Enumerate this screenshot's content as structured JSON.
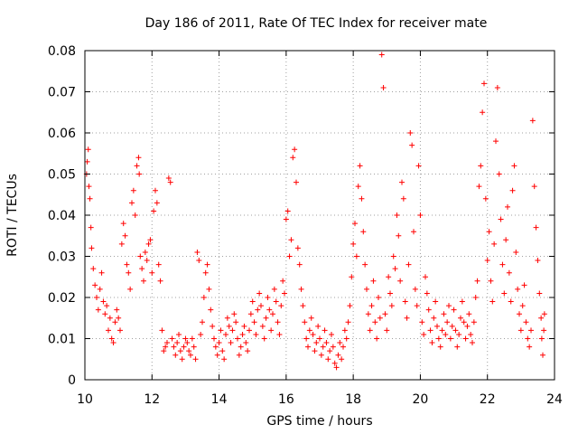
{
  "chart_data": {
    "type": "scatter",
    "title": "Day 186 of 2011, Rate Of TEC Index for receiver mate",
    "xlabel": "GPS time / hours",
    "ylabel": "ROTI / TECUs",
    "xlim": [
      10,
      24
    ],
    "ylim": [
      0,
      0.08
    ],
    "xticks": [
      "10",
      "12",
      "14",
      "16",
      "18",
      "20",
      "22",
      "24"
    ],
    "yticks": [
      "0",
      "0.01",
      "0.02",
      "0.03",
      "0.04",
      "0.05",
      "0.06",
      "0.07",
      "0.08"
    ],
    "grid": true,
    "marker": "+",
    "color": "#ff0000",
    "points": [
      [
        10.05,
        0.05
      ],
      [
        10.07,
        0.053
      ],
      [
        10.1,
        0.056
      ],
      [
        10.12,
        0.047
      ],
      [
        10.15,
        0.044
      ],
      [
        10.18,
        0.037
      ],
      [
        10.2,
        0.032
      ],
      [
        10.25,
        0.027
      ],
      [
        10.3,
        0.023
      ],
      [
        10.35,
        0.02
      ],
      [
        10.4,
        0.017
      ],
      [
        10.45,
        0.022
      ],
      [
        10.5,
        0.026
      ],
      [
        10.55,
        0.019
      ],
      [
        10.6,
        0.016
      ],
      [
        10.65,
        0.018
      ],
      [
        10.7,
        0.012
      ],
      [
        10.75,
        0.015
      ],
      [
        10.8,
        0.01
      ],
      [
        10.85,
        0.009
      ],
      [
        10.9,
        0.014
      ],
      [
        10.95,
        0.017
      ],
      [
        11.0,
        0.015
      ],
      [
        11.05,
        0.012
      ],
      [
        11.1,
        0.033
      ],
      [
        11.15,
        0.038
      ],
      [
        11.2,
        0.035
      ],
      [
        11.25,
        0.028
      ],
      [
        11.3,
        0.026
      ],
      [
        11.35,
        0.022
      ],
      [
        11.4,
        0.043
      ],
      [
        11.45,
        0.046
      ],
      [
        11.5,
        0.04
      ],
      [
        11.55,
        0.052
      ],
      [
        11.6,
        0.054
      ],
      [
        11.62,
        0.05
      ],
      [
        11.65,
        0.03
      ],
      [
        11.7,
        0.027
      ],
      [
        11.75,
        0.024
      ],
      [
        11.8,
        0.031
      ],
      [
        11.85,
        0.029
      ],
      [
        11.9,
        0.033
      ],
      [
        11.95,
        0.034
      ],
      [
        12.0,
        0.026
      ],
      [
        12.05,
        0.041
      ],
      [
        12.1,
        0.046
      ],
      [
        12.15,
        0.043
      ],
      [
        12.2,
        0.028
      ],
      [
        12.25,
        0.024
      ],
      [
        12.3,
        0.012
      ],
      [
        12.35,
        0.007
      ],
      [
        12.4,
        0.008
      ],
      [
        12.45,
        0.009
      ],
      [
        12.5,
        0.049
      ],
      [
        12.55,
        0.048
      ],
      [
        12.6,
        0.01
      ],
      [
        12.65,
        0.008
      ],
      [
        12.7,
        0.006
      ],
      [
        12.75,
        0.009
      ],
      [
        12.8,
        0.011
      ],
      [
        12.85,
        0.007
      ],
      [
        12.9,
        0.005
      ],
      [
        12.95,
        0.008
      ],
      [
        13.0,
        0.01
      ],
      [
        13.05,
        0.009
      ],
      [
        13.1,
        0.007
      ],
      [
        13.15,
        0.006
      ],
      [
        13.2,
        0.01
      ],
      [
        13.25,
        0.008
      ],
      [
        13.3,
        0.005
      ],
      [
        13.35,
        0.031
      ],
      [
        13.4,
        0.029
      ],
      [
        13.45,
        0.011
      ],
      [
        13.5,
        0.014
      ],
      [
        13.55,
        0.02
      ],
      [
        13.6,
        0.026
      ],
      [
        13.65,
        0.028
      ],
      [
        13.7,
        0.022
      ],
      [
        13.75,
        0.017
      ],
      [
        13.8,
        0.013
      ],
      [
        13.85,
        0.01
      ],
      [
        13.9,
        0.008
      ],
      [
        13.95,
        0.006
      ],
      [
        14.0,
        0.009
      ],
      [
        14.05,
        0.012
      ],
      [
        14.1,
        0.007
      ],
      [
        14.15,
        0.005
      ],
      [
        14.2,
        0.011
      ],
      [
        14.25,
        0.015
      ],
      [
        14.3,
        0.013
      ],
      [
        14.35,
        0.009
      ],
      [
        14.4,
        0.012
      ],
      [
        14.45,
        0.016
      ],
      [
        14.5,
        0.014
      ],
      [
        14.55,
        0.01
      ],
      [
        14.6,
        0.006
      ],
      [
        14.65,
        0.008
      ],
      [
        14.7,
        0.011
      ],
      [
        14.75,
        0.013
      ],
      [
        14.8,
        0.009
      ],
      [
        14.85,
        0.007
      ],
      [
        14.9,
        0.012
      ],
      [
        14.95,
        0.016
      ],
      [
        15.0,
        0.019
      ],
      [
        15.05,
        0.014
      ],
      [
        15.1,
        0.011
      ],
      [
        15.15,
        0.017
      ],
      [
        15.2,
        0.021
      ],
      [
        15.25,
        0.018
      ],
      [
        15.3,
        0.013
      ],
      [
        15.35,
        0.01
      ],
      [
        15.4,
        0.015
      ],
      [
        15.45,
        0.02
      ],
      [
        15.5,
        0.017
      ],
      [
        15.55,
        0.012
      ],
      [
        15.6,
        0.016
      ],
      [
        15.65,
        0.022
      ],
      [
        15.7,
        0.019
      ],
      [
        15.75,
        0.014
      ],
      [
        15.8,
        0.011
      ],
      [
        15.85,
        0.018
      ],
      [
        15.9,
        0.024
      ],
      [
        15.95,
        0.021
      ],
      [
        16.0,
        0.039
      ],
      [
        16.05,
        0.041
      ],
      [
        16.1,
        0.03
      ],
      [
        16.15,
        0.034
      ],
      [
        16.2,
        0.054
      ],
      [
        16.25,
        0.056
      ],
      [
        16.3,
        0.048
      ],
      [
        16.35,
        0.032
      ],
      [
        16.4,
        0.028
      ],
      [
        16.45,
        0.022
      ],
      [
        16.5,
        0.018
      ],
      [
        16.55,
        0.014
      ],
      [
        16.6,
        0.01
      ],
      [
        16.65,
        0.008
      ],
      [
        16.7,
        0.012
      ],
      [
        16.75,
        0.015
      ],
      [
        16.8,
        0.011
      ],
      [
        16.85,
        0.007
      ],
      [
        16.9,
        0.009
      ],
      [
        16.95,
        0.013
      ],
      [
        17.0,
        0.01
      ],
      [
        17.05,
        0.006
      ],
      [
        17.1,
        0.008
      ],
      [
        17.15,
        0.012
      ],
      [
        17.2,
        0.009
      ],
      [
        17.25,
        0.005
      ],
      [
        17.3,
        0.007
      ],
      [
        17.35,
        0.011
      ],
      [
        17.4,
        0.008
      ],
      [
        17.45,
        0.004
      ],
      [
        17.5,
        0.003
      ],
      [
        17.55,
        0.006
      ],
      [
        17.6,
        0.009
      ],
      [
        17.65,
        0.005
      ],
      [
        17.7,
        0.008
      ],
      [
        17.75,
        0.012
      ],
      [
        17.8,
        0.01
      ],
      [
        17.85,
        0.014
      ],
      [
        17.9,
        0.018
      ],
      [
        17.95,
        0.025
      ],
      [
        18.0,
        0.033
      ],
      [
        18.05,
        0.038
      ],
      [
        18.1,
        0.03
      ],
      [
        18.15,
        0.047
      ],
      [
        18.2,
        0.052
      ],
      [
        18.25,
        0.044
      ],
      [
        18.3,
        0.036
      ],
      [
        18.35,
        0.028
      ],
      [
        18.4,
        0.022
      ],
      [
        18.45,
        0.016
      ],
      [
        18.5,
        0.012
      ],
      [
        18.55,
        0.018
      ],
      [
        18.6,
        0.024
      ],
      [
        18.65,
        0.014
      ],
      [
        18.7,
        0.01
      ],
      [
        18.75,
        0.02
      ],
      [
        18.8,
        0.015
      ],
      [
        18.85,
        0.079
      ],
      [
        18.9,
        0.071
      ],
      [
        18.95,
        0.016
      ],
      [
        19.0,
        0.012
      ],
      [
        19.05,
        0.025
      ],
      [
        19.1,
        0.021
      ],
      [
        19.15,
        0.018
      ],
      [
        19.2,
        0.03
      ],
      [
        19.25,
        0.027
      ],
      [
        19.3,
        0.04
      ],
      [
        19.35,
        0.035
      ],
      [
        19.4,
        0.024
      ],
      [
        19.45,
        0.048
      ],
      [
        19.5,
        0.044
      ],
      [
        19.55,
        0.019
      ],
      [
        19.6,
        0.015
      ],
      [
        19.65,
        0.028
      ],
      [
        19.7,
        0.06
      ],
      [
        19.75,
        0.057
      ],
      [
        19.8,
        0.036
      ],
      [
        19.85,
        0.022
      ],
      [
        19.9,
        0.018
      ],
      [
        19.95,
        0.052
      ],
      [
        20.0,
        0.04
      ],
      [
        20.05,
        0.014
      ],
      [
        20.1,
        0.011
      ],
      [
        20.15,
        0.025
      ],
      [
        20.2,
        0.021
      ],
      [
        20.25,
        0.017
      ],
      [
        20.3,
        0.012
      ],
      [
        20.35,
        0.009
      ],
      [
        20.4,
        0.015
      ],
      [
        20.45,
        0.019
      ],
      [
        20.5,
        0.013
      ],
      [
        20.55,
        0.01
      ],
      [
        20.6,
        0.008
      ],
      [
        20.65,
        0.012
      ],
      [
        20.7,
        0.016
      ],
      [
        20.75,
        0.011
      ],
      [
        20.8,
        0.014
      ],
      [
        20.85,
        0.018
      ],
      [
        20.9,
        0.01
      ],
      [
        20.95,
        0.013
      ],
      [
        21.0,
        0.017
      ],
      [
        21.05,
        0.012
      ],
      [
        21.1,
        0.008
      ],
      [
        21.15,
        0.011
      ],
      [
        21.2,
        0.015
      ],
      [
        21.25,
        0.019
      ],
      [
        21.3,
        0.014
      ],
      [
        21.35,
        0.01
      ],
      [
        21.4,
        0.013
      ],
      [
        21.45,
        0.016
      ],
      [
        21.5,
        0.011
      ],
      [
        21.55,
        0.009
      ],
      [
        21.6,
        0.014
      ],
      [
        21.65,
        0.02
      ],
      [
        21.7,
        0.024
      ],
      [
        21.75,
        0.047
      ],
      [
        21.8,
        0.052
      ],
      [
        21.85,
        0.065
      ],
      [
        21.9,
        0.072
      ],
      [
        21.95,
        0.044
      ],
      [
        22.0,
        0.029
      ],
      [
        22.05,
        0.036
      ],
      [
        22.1,
        0.024
      ],
      [
        22.15,
        0.019
      ],
      [
        22.2,
        0.033
      ],
      [
        22.25,
        0.058
      ],
      [
        22.3,
        0.071
      ],
      [
        22.35,
        0.05
      ],
      [
        22.4,
        0.039
      ],
      [
        22.45,
        0.028
      ],
      [
        22.5,
        0.021
      ],
      [
        22.55,
        0.034
      ],
      [
        22.6,
        0.042
      ],
      [
        22.65,
        0.026
      ],
      [
        22.7,
        0.019
      ],
      [
        22.75,
        0.046
      ],
      [
        22.8,
        0.052
      ],
      [
        22.85,
        0.031
      ],
      [
        22.9,
        0.022
      ],
      [
        22.95,
        0.016
      ],
      [
        23.0,
        0.012
      ],
      [
        23.05,
        0.018
      ],
      [
        23.1,
        0.023
      ],
      [
        23.15,
        0.014
      ],
      [
        23.2,
        0.01
      ],
      [
        23.25,
        0.008
      ],
      [
        23.3,
        0.012
      ],
      [
        23.35,
        0.063
      ],
      [
        23.4,
        0.047
      ],
      [
        23.45,
        0.037
      ],
      [
        23.5,
        0.029
      ],
      [
        23.55,
        0.021
      ],
      [
        23.6,
        0.015
      ],
      [
        23.62,
        0.01
      ],
      [
        23.65,
        0.006
      ],
      [
        23.68,
        0.012
      ],
      [
        23.7,
        0.016
      ]
    ]
  }
}
